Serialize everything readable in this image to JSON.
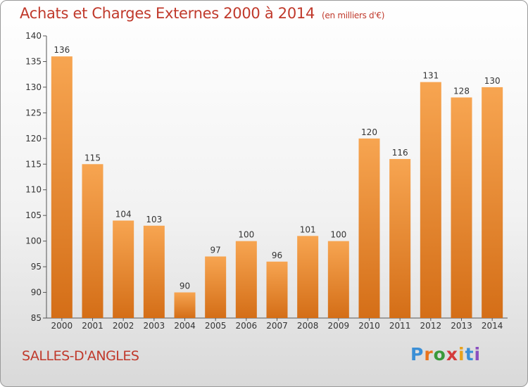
{
  "header": {
    "title": "Achats et Charges Externes 2000 à 2014",
    "unit": "(en milliers d'€)"
  },
  "footer": {
    "place": "SALLES-D'ANGLES",
    "logo": [
      "P",
      "r",
      "o",
      "x",
      "i",
      "t",
      "i"
    ]
  },
  "colors": {
    "title": "#c0392b",
    "bar_top": "#f7a551",
    "bar_bottom": "#d46e17",
    "axis": "#555555"
  },
  "chart_data": {
    "type": "bar",
    "title": "Achats et Charges Externes 2000 à 2014",
    "categories": [
      "2000",
      "2001",
      "2002",
      "2003",
      "2004",
      "2005",
      "2006",
      "2007",
      "2008",
      "2009",
      "2010",
      "2011",
      "2012",
      "2013",
      "2014"
    ],
    "values": [
      136,
      115,
      104,
      103,
      90,
      97,
      100,
      96,
      101,
      100,
      120,
      116,
      131,
      128,
      130
    ],
    "ylim": [
      85,
      140
    ],
    "yticks": [
      85,
      90,
      95,
      100,
      105,
      110,
      115,
      120,
      125,
      130,
      135,
      140
    ],
    "grid": false
  }
}
